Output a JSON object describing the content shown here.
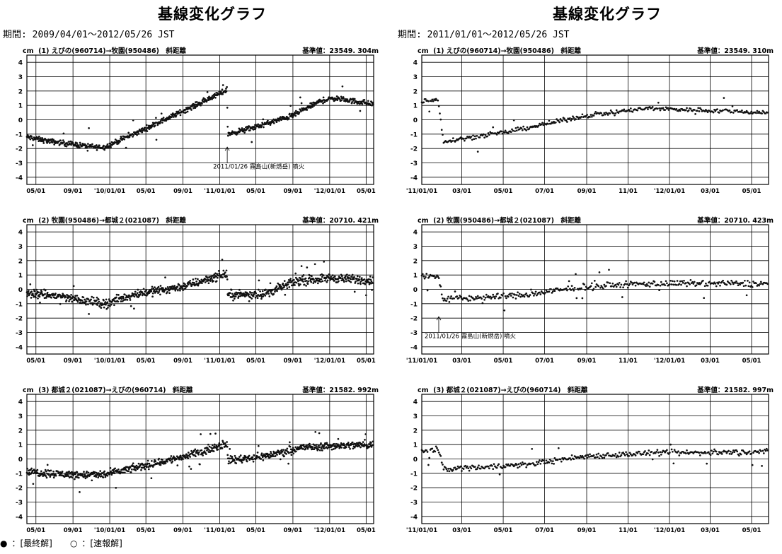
{
  "legend": {
    "final_symbol": "●",
    "final_label": "：[最終解]",
    "rapid_symbol": "○",
    "rapid_label": "：[速報解]"
  },
  "chart_data": [
    {
      "type": "scatter",
      "title": "基線変化グラフ",
      "period": "期間: 2009/04/01～2012/05/26 JST",
      "date_range": [
        "2009-04-01",
        "2012-05-26"
      ],
      "ticks": [
        {
          "date": "2009-05-01",
          "label": "05/01"
        },
        {
          "date": "2009-09-01",
          "label": "09/01"
        },
        {
          "date": "2010-01-01",
          "label": "'10/01/01"
        },
        {
          "date": "2010-05-01",
          "label": "05/01"
        },
        {
          "date": "2010-09-01",
          "label": "09/01"
        },
        {
          "date": "2011-01-01",
          "label": "'11/01/01"
        },
        {
          "date": "2011-05-01",
          "label": "05/01"
        },
        {
          "date": "2011-09-01",
          "label": "09/01"
        },
        {
          "date": "2012-01-01",
          "label": "'12/01/01"
        },
        {
          "date": "2012-05-01",
          "label": "05/01"
        }
      ],
      "panels": [
        {
          "unit": "cm",
          "label": "(1) えびの(960714)→牧園(950486)　斜距離",
          "base": "基準値：23549. 304m",
          "ylim": [
            -4.5,
            4.5
          ],
          "y_ticks": [
            "4",
            "3",
            "2",
            "1",
            "0",
            "-1",
            "-2",
            "-3",
            "-4"
          ],
          "annotation": {
            "text": "2011/01/26 霧島山(新燃岳) 噴火",
            "date": "2011-01-26"
          },
          "trend": [
            {
              "date": "2009-04-01",
              "y": -1.2
            },
            {
              "date": "2009-06-15",
              "y": -1.5
            },
            {
              "date": "2009-09-01",
              "y": -1.7
            },
            {
              "date": "2009-11-15",
              "y": -1.9
            },
            {
              "date": "2009-12-15",
              "y": -1.9
            },
            {
              "date": "2010-04-01",
              "y": -0.9
            },
            {
              "date": "2010-08-01",
              "y": 0.3
            },
            {
              "date": "2010-12-01",
              "y": 1.5
            },
            {
              "date": "2011-01-25",
              "y": 2.1
            },
            {
              "date": "2011-01-28",
              "y": -1.0
            },
            {
              "date": "2011-05-01",
              "y": -0.5
            },
            {
              "date": "2011-09-01",
              "y": 0.3
            },
            {
              "date": "2011-12-01",
              "y": 1.3
            },
            {
              "date": "2012-01-15",
              "y": 1.5
            },
            {
              "date": "2012-05-26",
              "y": 1.1
            }
          ],
          "scatter": 0.12
        },
        {
          "unit": "cm",
          "label": "(2) 牧園(950486)→都城２(021087)　斜距離",
          "base": "基準値：20710. 421m",
          "ylim": [
            -4.5,
            4.5
          ],
          "y_ticks": [
            "4",
            "3",
            "2",
            "1",
            "0",
            "-1",
            "-2",
            "-3",
            "-4"
          ],
          "trend": [
            {
              "date": "2009-04-01",
              "y": -0.3
            },
            {
              "date": "2009-08-01",
              "y": -0.5
            },
            {
              "date": "2009-12-15",
              "y": -1.0
            },
            {
              "date": "2010-04-01",
              "y": -0.3
            },
            {
              "date": "2010-09-01",
              "y": 0.2
            },
            {
              "date": "2011-01-25",
              "y": 1.1
            },
            {
              "date": "2011-01-28",
              "y": -0.4
            },
            {
              "date": "2011-06-01",
              "y": -0.3
            },
            {
              "date": "2011-09-15",
              "y": 0.6
            },
            {
              "date": "2012-01-01",
              "y": 0.8
            },
            {
              "date": "2012-05-26",
              "y": 0.6
            }
          ],
          "scatter": 0.2
        },
        {
          "unit": "cm",
          "label": "(3) 都城２(021087)→えびの(960714)　斜距離",
          "base": "基準値：21582. 992m",
          "ylim": [
            -4.5,
            4.5
          ],
          "y_ticks": [
            "4",
            "3",
            "2",
            "1",
            "0",
            "-1",
            "-2",
            "-3",
            "-4"
          ],
          "trend": [
            {
              "date": "2009-04-01",
              "y": -0.9
            },
            {
              "date": "2009-09-01",
              "y": -1.1
            },
            {
              "date": "2009-12-15",
              "y": -1.1
            },
            {
              "date": "2010-06-01",
              "y": -0.3
            },
            {
              "date": "2010-10-01",
              "y": 0.3
            },
            {
              "date": "2011-01-25",
              "y": 1.1
            },
            {
              "date": "2011-01-28",
              "y": -0.1
            },
            {
              "date": "2011-06-01",
              "y": 0.2
            },
            {
              "date": "2011-10-01",
              "y": 0.8
            },
            {
              "date": "2012-01-01",
              "y": 0.9
            },
            {
              "date": "2012-05-26",
              "y": 1.0
            }
          ],
          "scatter": 0.18
        }
      ]
    },
    {
      "type": "scatter",
      "title": "基線変化グラフ",
      "period": "期間: 2011/01/01～2012/05/26 JST",
      "date_range": [
        "2011-01-01",
        "2012-05-26"
      ],
      "ticks": [
        {
          "date": "2011-01-01",
          "label": "'11/01/01"
        },
        {
          "date": "2011-03-01",
          "label": "03/01"
        },
        {
          "date": "2011-05-01",
          "label": "05/01"
        },
        {
          "date": "2011-07-01",
          "label": "07/01"
        },
        {
          "date": "2011-09-01",
          "label": "09/01"
        },
        {
          "date": "2011-11-01",
          "label": "11/01"
        },
        {
          "date": "2012-01-01",
          "label": "'12/01/01"
        },
        {
          "date": "2012-03-01",
          "label": "03/01"
        },
        {
          "date": "2012-05-01",
          "label": "05/01"
        }
      ],
      "panels": [
        {
          "unit": "cm",
          "label": "(1) えびの(960714)→牧園(950486)　斜距離",
          "base": "基準値：23549. 310m",
          "ylim": [
            -4.5,
            4.5
          ],
          "y_ticks": [
            "4",
            "3",
            "2",
            "1",
            "0",
            "-1",
            "-2",
            "-3",
            "-4"
          ],
          "trend": [
            {
              "date": "2011-01-01",
              "y": 1.3
            },
            {
              "date": "2011-01-25",
              "y": 1.4
            },
            {
              "date": "2011-02-02",
              "y": -1.5
            },
            {
              "date": "2011-05-01",
              "y": -0.9
            },
            {
              "date": "2011-09-01",
              "y": 0.3
            },
            {
              "date": "2011-12-01",
              "y": 0.8
            },
            {
              "date": "2012-05-26",
              "y": 0.5
            }
          ],
          "scatter": 0.1
        },
        {
          "unit": "cm",
          "label": "(2) 牧園(950486)→都城２(021087)　斜距離",
          "base": "基準値：20710. 423m",
          "ylim": [
            -4.5,
            4.5
          ],
          "y_ticks": [
            "4",
            "3",
            "2",
            "1",
            "0",
            "-1",
            "-2",
            "-3",
            "-4"
          ],
          "annotation": {
            "text": "2011/01/26 霧島山(新燃岳) 噴火",
            "date": "2011-01-26"
          },
          "trend": [
            {
              "date": "2011-01-01",
              "y": 0.9
            },
            {
              "date": "2011-01-25",
              "y": 0.9
            },
            {
              "date": "2011-02-02",
              "y": -0.7
            },
            {
              "date": "2011-06-01",
              "y": -0.4
            },
            {
              "date": "2011-09-01",
              "y": 0.2
            },
            {
              "date": "2011-12-01",
              "y": 0.4
            },
            {
              "date": "2012-05-26",
              "y": 0.4
            }
          ],
          "scatter": 0.15
        },
        {
          "unit": "cm",
          "label": "(3) 都城２(021087)→えびの(960714)　斜距離",
          "base": "基準値：21582. 997m",
          "ylim": [
            -4.5,
            4.5
          ],
          "y_ticks": [
            "4",
            "3",
            "2",
            "1",
            "0",
            "-1",
            "-2",
            "-3",
            "-4"
          ],
          "trend": [
            {
              "date": "2011-01-01",
              "y": 0.5
            },
            {
              "date": "2011-01-25",
              "y": 0.7
            },
            {
              "date": "2011-02-02",
              "y": -0.7
            },
            {
              "date": "2011-06-01",
              "y": -0.4
            },
            {
              "date": "2011-09-01",
              "y": 0.2
            },
            {
              "date": "2011-12-01",
              "y": 0.4
            },
            {
              "date": "2012-05-26",
              "y": 0.5
            }
          ],
          "scatter": 0.13
        }
      ]
    }
  ]
}
